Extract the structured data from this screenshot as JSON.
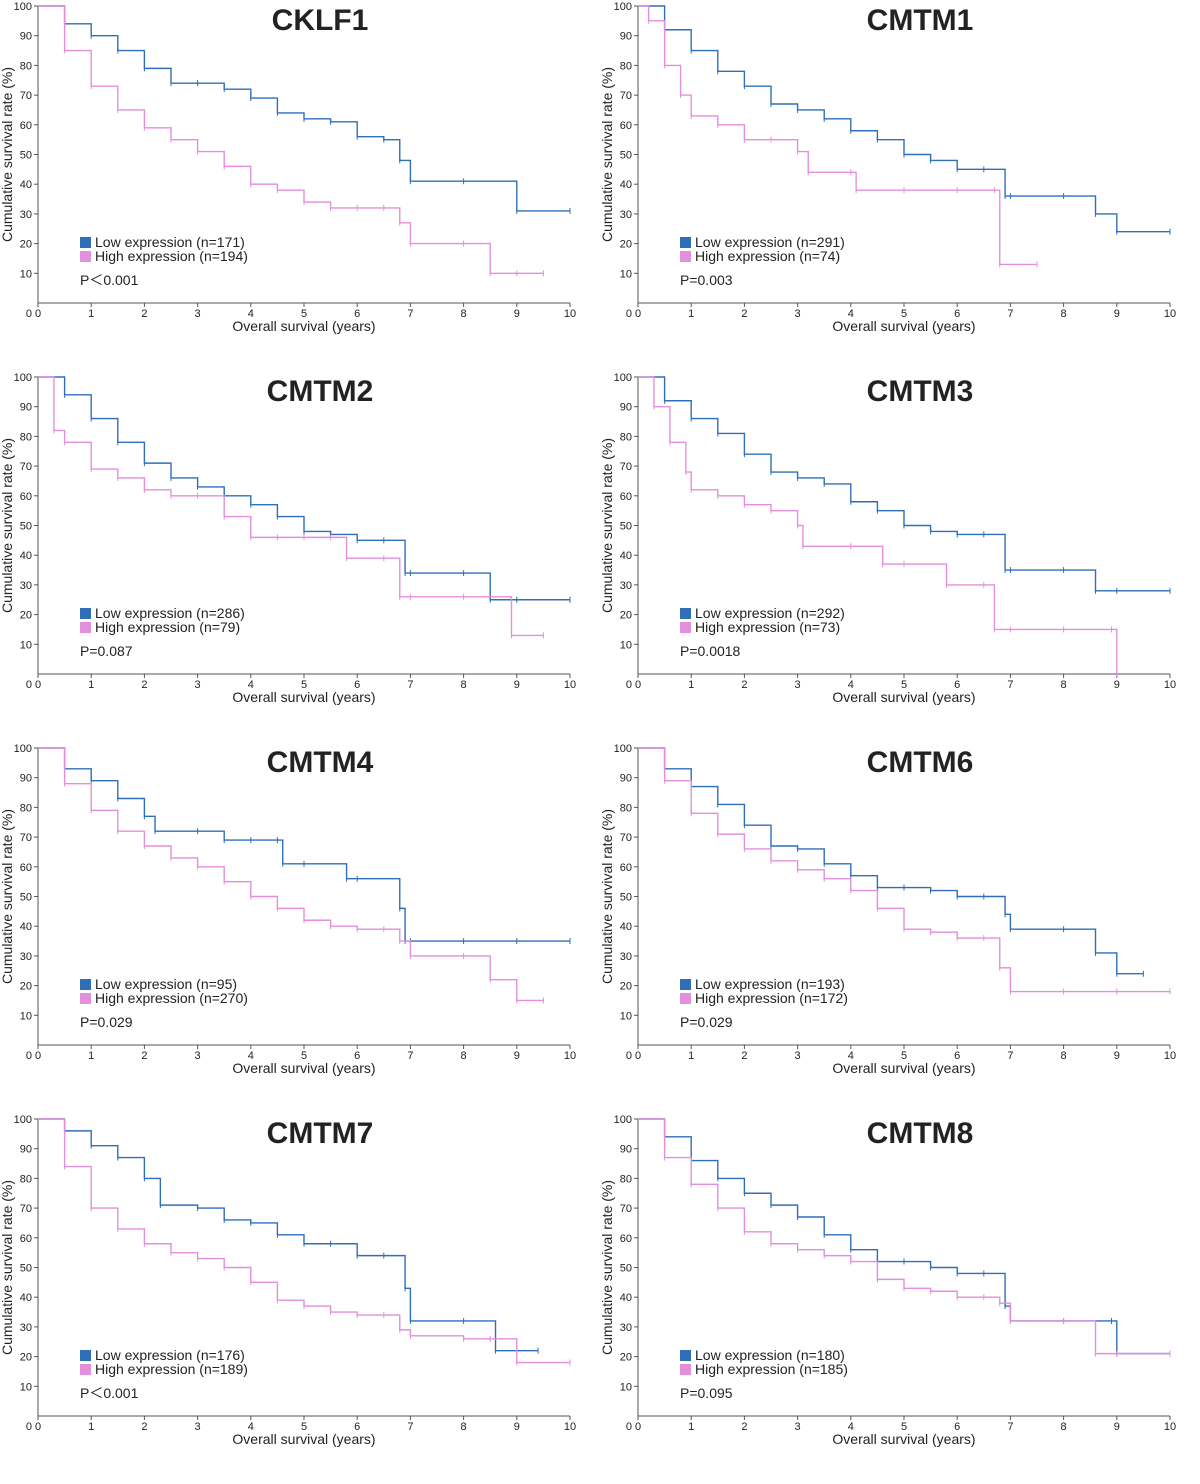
{
  "figure": {
    "colors": {
      "low": "#2f6fba",
      "high": "#e48fdc",
      "axis": "#555555"
    }
  },
  "chart_data": [
    {
      "type": "line",
      "title": "CKLF1",
      "xlabel": "Overall survival (years)",
      "ylabel": "Cumulative survival rate (%)",
      "xlim": [
        0,
        10
      ],
      "ylim": [
        0,
        100
      ],
      "xticks": [
        "0",
        "1",
        "2",
        "3",
        "4",
        "5",
        "6",
        "7",
        "8",
        "9",
        "10"
      ],
      "yticks": [
        "10",
        "20",
        "30",
        "40",
        "50",
        "60",
        "70",
        "80",
        "90",
        "100"
      ],
      "legend": "bottom-left",
      "pvalue": "P＜0.001",
      "series": [
        {
          "name": "Low expression (n=171)",
          "x": [
            0,
            0.5,
            1,
            1.5,
            2,
            2.5,
            3,
            3.5,
            4,
            4.5,
            5,
            5.5,
            6,
            6.5,
            6.8,
            7,
            8,
            9,
            10
          ],
          "values": [
            100,
            94,
            90,
            85,
            79,
            74,
            74,
            72,
            69,
            64,
            62,
            61,
            56,
            55,
            48,
            41,
            41,
            31,
            31
          ]
        },
        {
          "name": "High expression (n=194)",
          "x": [
            0,
            0.5,
            1,
            1.5,
            2,
            2.5,
            3,
            3.5,
            4,
            4.5,
            5,
            5.5,
            6,
            6.5,
            6.8,
            7,
            8,
            8.5,
            9,
            9.5
          ],
          "values": [
            100,
            85,
            73,
            65,
            59,
            55,
            51,
            46,
            40,
            38,
            34,
            32,
            32,
            32,
            27,
            20,
            20,
            10,
            10,
            10
          ]
        }
      ]
    },
    {
      "type": "line",
      "title": "CMTM1",
      "xlabel": "Overall survival (years)",
      "ylabel": "Cumulative survival rate (%)",
      "xlim": [
        0,
        10
      ],
      "ylim": [
        0,
        100
      ],
      "xticks": [
        "0",
        "1",
        "2",
        "3",
        "4",
        "5",
        "6",
        "7",
        "8",
        "9",
        "10"
      ],
      "yticks": [
        "10",
        "20",
        "30",
        "40",
        "50",
        "60",
        "70",
        "80",
        "90",
        "100"
      ],
      "legend": "bottom-left",
      "pvalue": "P=0.003",
      "series": [
        {
          "name": "Low expression (n=291)",
          "x": [
            0,
            0.5,
            1,
            1.5,
            2,
            2.5,
            3,
            3.5,
            4,
            4.5,
            5,
            5.5,
            6,
            6.5,
            6.9,
            7,
            8,
            8.6,
            9,
            10
          ],
          "values": [
            100,
            92,
            85,
            78,
            73,
            67,
            65,
            62,
            58,
            55,
            50,
            48,
            45,
            45,
            36,
            36,
            36,
            30,
            24,
            24
          ]
        },
        {
          "name": "High expression (n=74)",
          "x": [
            0,
            0.2,
            0.5,
            0.8,
            1,
            1.5,
            2,
            2.5,
            3,
            3.2,
            4,
            4.1,
            5,
            6,
            6.7,
            6.8,
            7.5
          ],
          "values": [
            100,
            95,
            80,
            70,
            63,
            60,
            55,
            55,
            51,
            44,
            44,
            38,
            38,
            38,
            38,
            13,
            13
          ]
        }
      ]
    },
    {
      "type": "line",
      "title": "CMTM2",
      "xlabel": "Overall survival (years)",
      "ylabel": "Cumulative survival rate (%)",
      "xlim": [
        0,
        10
      ],
      "ylim": [
        0,
        100
      ],
      "xticks": [
        "0",
        "1",
        "2",
        "3",
        "4",
        "5",
        "6",
        "7",
        "8",
        "9",
        "10"
      ],
      "yticks": [
        "10",
        "20",
        "30",
        "40",
        "50",
        "60",
        "70",
        "80",
        "90",
        "100"
      ],
      "legend": "bottom-left",
      "pvalue": "P=0.087",
      "series": [
        {
          "name": "Low expression (n=286)",
          "x": [
            0,
            0.5,
            1,
            1.5,
            2,
            2.5,
            3,
            3.5,
            4,
            4.5,
            5,
            5.5,
            6,
            6.5,
            6.9,
            7,
            8,
            8.5,
            9,
            10
          ],
          "values": [
            100,
            94,
            86,
            78,
            71,
            66,
            63,
            60,
            57,
            53,
            48,
            47,
            45,
            45,
            34,
            34,
            34,
            25,
            25,
            25
          ]
        },
        {
          "name": "High expression (n=79)",
          "x": [
            0,
            0.3,
            0.5,
            1,
            1.5,
            2,
            2.5,
            3,
            3.5,
            4,
            4.5,
            5,
            5.5,
            5.8,
            6.5,
            6.8,
            7,
            8,
            8.9,
            9.5
          ],
          "values": [
            100,
            82,
            78,
            69,
            66,
            62,
            60,
            60,
            53,
            46,
            46,
            46,
            46,
            39,
            39,
            26,
            26,
            26,
            13,
            13
          ]
        }
      ]
    },
    {
      "type": "line",
      "title": "CMTM3",
      "xlabel": "Overall survival (years)",
      "ylabel": "Cumulative survival rate (%)",
      "xlim": [
        0,
        10
      ],
      "ylim": [
        0,
        100
      ],
      "xticks": [
        "0",
        "1",
        "2",
        "3",
        "4",
        "5",
        "6",
        "7",
        "8",
        "9",
        "10"
      ],
      "yticks": [
        "10",
        "20",
        "30",
        "40",
        "50",
        "60",
        "70",
        "80",
        "90",
        "100"
      ],
      "legend": "bottom-left",
      "pvalue": "P=0.0018",
      "series": [
        {
          "name": "Low expression (n=292)",
          "x": [
            0,
            0.5,
            1,
            1.5,
            2,
            2.5,
            3,
            3.5,
            4,
            4.5,
            5,
            5.5,
            6,
            6.5,
            6.9,
            7,
            8,
            8.6,
            9,
            10
          ],
          "values": [
            100,
            92,
            86,
            81,
            74,
            68,
            66,
            64,
            58,
            55,
            50,
            48,
            47,
            47,
            35,
            35,
            35,
            28,
            28,
            28
          ]
        },
        {
          "name": "High expression (n=73)",
          "x": [
            0,
            0.3,
            0.6,
            0.9,
            1,
            1.5,
            2,
            2.5,
            3,
            3.1,
            4,
            4.6,
            5,
            5.8,
            6.5,
            6.7,
            7,
            8,
            8.9,
            9.0
          ],
          "values": [
            100,
            90,
            78,
            68,
            62,
            60,
            57,
            55,
            50,
            43,
            43,
            37,
            37,
            30,
            30,
            15,
            15,
            15,
            15,
            0
          ]
        }
      ]
    },
    {
      "type": "line",
      "title": "CMTM4",
      "xlabel": "Overall survival (years)",
      "ylabel": "Cumulative survival rate (%)",
      "xlim": [
        0,
        10
      ],
      "ylim": [
        0,
        100
      ],
      "xticks": [
        "0",
        "1",
        "2",
        "3",
        "4",
        "5",
        "6",
        "7",
        "8",
        "9",
        "10"
      ],
      "yticks": [
        "10",
        "20",
        "30",
        "40",
        "50",
        "60",
        "70",
        "80",
        "90",
        "100"
      ],
      "legend": "bottom-left",
      "pvalue": "P=0.029",
      "series": [
        {
          "name": "Low expression (n=95)",
          "x": [
            0,
            0.5,
            1,
            1.5,
            2,
            2.2,
            3,
            3.5,
            4,
            4.5,
            4.6,
            5,
            5.8,
            6,
            6.8,
            6.9,
            7,
            8,
            9,
            10
          ],
          "values": [
            100,
            93,
            89,
            83,
            77,
            72,
            72,
            69,
            69,
            69,
            61,
            61,
            56,
            56,
            46,
            35,
            35,
            35,
            35,
            35
          ]
        },
        {
          "name": "High expression (n=270)",
          "x": [
            0,
            0.5,
            1,
            1.5,
            2,
            2.5,
            3,
            3.5,
            4,
            4.5,
            5,
            5.5,
            6,
            6.5,
            6.8,
            7,
            8,
            8.5,
            9,
            9.5
          ],
          "values": [
            100,
            88,
            79,
            72,
            67,
            63,
            60,
            55,
            50,
            46,
            42,
            40,
            39,
            39,
            35,
            30,
            30,
            22,
            15,
            15
          ]
        }
      ]
    },
    {
      "type": "line",
      "title": "CMTM6",
      "xlabel": "Overall survival (years)",
      "ylabel": "Cumulative survival rate (%)",
      "xlim": [
        0,
        10
      ],
      "ylim": [
        0,
        100
      ],
      "xticks": [
        "0",
        "1",
        "2",
        "3",
        "4",
        "5",
        "6",
        "7",
        "8",
        "9",
        "10"
      ],
      "yticks": [
        "10",
        "20",
        "30",
        "40",
        "50",
        "60",
        "70",
        "80",
        "90",
        "100"
      ],
      "legend": "bottom-left",
      "pvalue": "P=0.029",
      "series": [
        {
          "name": "Low expression (n=193)",
          "x": [
            0,
            0.5,
            1,
            1.5,
            2,
            2.5,
            3,
            3.5,
            4,
            4.5,
            5,
            5.5,
            6,
            6.5,
            6.9,
            7,
            8,
            8.6,
            9,
            9.5
          ],
          "values": [
            100,
            93,
            87,
            81,
            74,
            67,
            66,
            61,
            57,
            53,
            53,
            52,
            50,
            50,
            44,
            39,
            39,
            31,
            24,
            24
          ]
        },
        {
          "name": "High expression (n=172)",
          "x": [
            0,
            0.5,
            1,
            1.5,
            2,
            2.5,
            3,
            3.5,
            4,
            4.5,
            5,
            5.5,
            6,
            6.5,
            6.8,
            7,
            8,
            9,
            10
          ],
          "values": [
            100,
            89,
            78,
            71,
            66,
            62,
            59,
            56,
            52,
            46,
            39,
            38,
            36,
            36,
            26,
            18,
            18,
            18,
            18
          ]
        }
      ]
    },
    {
      "type": "line",
      "title": "CMTM7",
      "xlabel": "Overall survival (years)",
      "ylabel": "Cumulative survival rate (%)",
      "xlim": [
        0,
        10
      ],
      "ylim": [
        0,
        100
      ],
      "xticks": [
        "0",
        "1",
        "2",
        "3",
        "4",
        "5",
        "6",
        "7",
        "8",
        "9",
        "10"
      ],
      "yticks": [
        "10",
        "20",
        "30",
        "40",
        "50",
        "60",
        "70",
        "80",
        "90",
        "100"
      ],
      "legend": "bottom-left",
      "pvalue": "P＜0.001",
      "series": [
        {
          "name": "Low expression (n=176)",
          "x": [
            0,
            0.5,
            1,
            1.5,
            2,
            2.3,
            3,
            3.5,
            4,
            4.5,
            5,
            5.5,
            6,
            6.5,
            6.9,
            7,
            8,
            8.6,
            9,
            9.4
          ],
          "values": [
            100,
            96,
            91,
            87,
            80,
            71,
            70,
            66,
            65,
            61,
            58,
            58,
            54,
            54,
            43,
            32,
            32,
            22,
            22,
            22
          ]
        },
        {
          "name": "High expression (n=189)",
          "x": [
            0,
            0.5,
            1,
            1.5,
            2,
            2.5,
            3,
            3.5,
            4,
            4.5,
            5,
            5.5,
            6,
            6.5,
            6.8,
            7,
            8,
            8.5,
            9,
            10
          ],
          "values": [
            100,
            84,
            70,
            63,
            58,
            55,
            53,
            50,
            45,
            39,
            37,
            35,
            34,
            34,
            29,
            27,
            26,
            26,
            18,
            18
          ]
        }
      ]
    },
    {
      "type": "line",
      "title": "CMTM8",
      "xlabel": "Overall survival (years)",
      "ylabel": "Cumulative survival rate (%)",
      "xlim": [
        0,
        10
      ],
      "ylim": [
        0,
        100
      ],
      "xticks": [
        "0",
        "1",
        "2",
        "3",
        "4",
        "5",
        "6",
        "7",
        "8",
        "9",
        "10"
      ],
      "yticks": [
        "10",
        "20",
        "30",
        "40",
        "50",
        "60",
        "70",
        "80",
        "90",
        "100"
      ],
      "legend": "bottom-left",
      "pvalue": "P=0.095",
      "series": [
        {
          "name": "Low expression (n=180)",
          "x": [
            0,
            0.5,
            1,
            1.5,
            2,
            2.5,
            3,
            3.5,
            4,
            4.5,
            5,
            5.5,
            6,
            6.5,
            6.9,
            7,
            8,
            8.9,
            9,
            10
          ],
          "values": [
            100,
            94,
            86,
            80,
            75,
            71,
            67,
            61,
            56,
            52,
            52,
            50,
            48,
            48,
            37,
            32,
            32,
            32,
            21,
            21
          ]
        },
        {
          "name": "High expression (n=185)",
          "x": [
            0,
            0.5,
            1,
            1.5,
            2,
            2.5,
            3,
            3.5,
            4,
            4.5,
            5,
            5.5,
            6,
            6.5,
            6.8,
            7,
            8,
            8.6,
            9,
            10
          ],
          "values": [
            100,
            87,
            78,
            70,
            62,
            58,
            56,
            54,
            52,
            46,
            43,
            42,
            40,
            40,
            38,
            32,
            32,
            21,
            21,
            21
          ]
        }
      ]
    }
  ]
}
